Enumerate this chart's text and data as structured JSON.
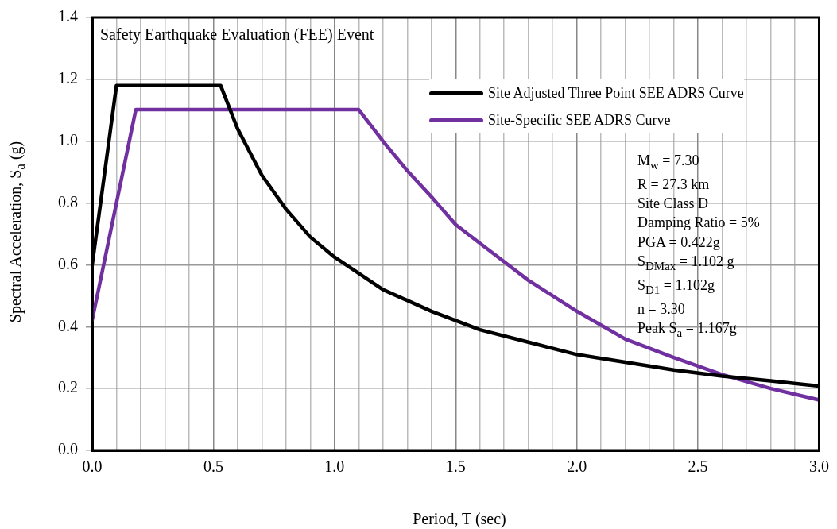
{
  "chart_data": {
    "type": "line",
    "title": "Safety  Earthquake Evaluation (FEE) Event",
    "xlabel": "Period, T (sec)",
    "ylabel": "Spectral Acceleration, S$_{a}$ (g)",
    "xlim": [
      0,
      3
    ],
    "ylim": [
      0,
      1.4
    ],
    "xticks": [
      {
        "value": 0,
        "label": "0.0"
      },
      {
        "value": 0.1,
        "label": null
      },
      {
        "value": 0.2,
        "label": null
      },
      {
        "value": 0.3,
        "label": null
      },
      {
        "value": 0.4,
        "label": null
      },
      {
        "value": 0.5,
        "label": "0.5"
      },
      {
        "value": 0.6,
        "label": null
      },
      {
        "value": 0.7,
        "label": null
      },
      {
        "value": 0.8,
        "label": null
      },
      {
        "value": 0.9,
        "label": null
      },
      {
        "value": 1,
        "label": "1.0"
      },
      {
        "value": 1.1,
        "label": null
      },
      {
        "value": 1.2,
        "label": null
      },
      {
        "value": 1.3,
        "label": null
      },
      {
        "value": 1.4,
        "label": null
      },
      {
        "value": 1.5,
        "label": "1.5"
      },
      {
        "value": 1.6,
        "label": null
      },
      {
        "value": 1.7,
        "label": null
      },
      {
        "value": 1.8,
        "label": null
      },
      {
        "value": 1.9,
        "label": null
      },
      {
        "value": 2,
        "label": "2.0"
      },
      {
        "value": 2.1,
        "label": null
      },
      {
        "value": 2.2,
        "label": null
      },
      {
        "value": 2.3,
        "label": null
      },
      {
        "value": 2.4,
        "label": null
      },
      {
        "value": 2.5,
        "label": "2.5"
      },
      {
        "value": 2.6,
        "label": null
      },
      {
        "value": 2.7,
        "label": null
      },
      {
        "value": 2.8,
        "label": null
      },
      {
        "value": 2.9,
        "label": null
      },
      {
        "value": 3,
        "label": "3.0"
      }
    ],
    "yticks": [
      {
        "value": 0,
        "label": "0.0"
      },
      {
        "value": 0.2,
        "label": "0.2"
      },
      {
        "value": 0.4,
        "label": "0.4"
      },
      {
        "value": 0.6,
        "label": "0.6"
      },
      {
        "value": 0.8,
        "label": "0.8"
      },
      {
        "value": 1,
        "label": "1.0"
      },
      {
        "value": 1.2,
        "label": "1.2"
      },
      {
        "value": 1.4,
        "label": "1.4"
      }
    ],
    "grid": true,
    "legend": "top right",
    "marker": "none",
    "line_style": "solid",
    "series": [
      {
        "name": "Site Adjusted Three Point SEE ADRS Curve",
        "color": "#000000",
        "x": [
          0,
          0.1,
          0.53,
          0.6,
          0.7,
          0.8,
          0.9,
          1.0,
          1.2,
          1.4,
          1.6,
          1.8,
          2.0,
          2.2,
          2.4,
          2.6,
          2.8,
          3.0
        ],
        "values": [
          0.6,
          1.18,
          1.18,
          1.04,
          0.89,
          0.78,
          0.69,
          0.625,
          0.52,
          0.45,
          0.39,
          0.35,
          0.31,
          0.285,
          0.26,
          0.24,
          0.225,
          0.208
        ]
      },
      {
        "name": "Site-Specific SEE ADRS Curve",
        "color": "#7030a0",
        "x": [
          0,
          0.18,
          1.1,
          1.2,
          1.3,
          1.4,
          1.5,
          1.6,
          1.7,
          1.8,
          1.9,
          2.0,
          2.2,
          2.4,
          2.6,
          2.8,
          3.0
        ],
        "values": [
          0.422,
          1.102,
          1.102,
          1.0,
          0.905,
          0.82,
          0.73,
          0.67,
          0.61,
          0.55,
          0.5,
          0.45,
          0.36,
          0.3,
          0.245,
          0.2,
          0.163
        ]
      }
    ],
    "annotations": [
      "M$_{w}$ = 7.30",
      "R = 27.3 km",
      "Site Class D",
      "Damping  Ratio = 5%",
      "PGA = 0.422g",
      "S$_{DMax}$ = 1.102 g",
      "S$_{D1}$ = 1.102g",
      "n = 3.30",
      "Peak S$_{a}$ = 1.167g"
    ]
  }
}
